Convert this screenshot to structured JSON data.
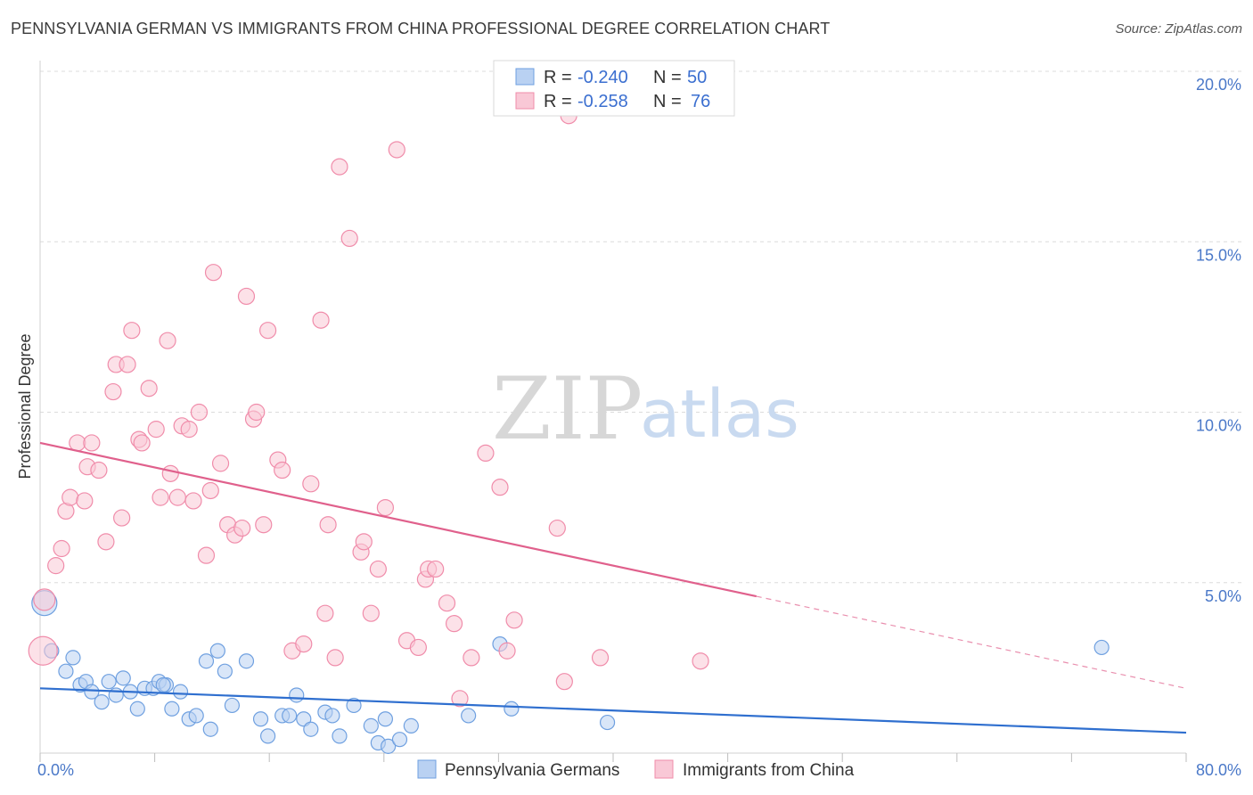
{
  "header": {
    "title": "PENNSYLVANIA GERMAN VS IMMIGRANTS FROM CHINA PROFESSIONAL DEGREE CORRELATION CHART",
    "source": "Source: ZipAtlas.com"
  },
  "watermark": {
    "zip": "ZIP",
    "atlas": "atlas"
  },
  "chart_data": {
    "type": "scatter",
    "title": "PENNSYLVANIA GERMAN VS IMMIGRANTS FROM CHINA PROFESSIONAL DEGREE CORRELATION CHART",
    "xlabel": "",
    "ylabel": "Professional Degree",
    "xlim": [
      0,
      80
    ],
    "ylim": [
      0,
      20
    ],
    "x_tick_labels": [
      "0.0%",
      "80.0%"
    ],
    "y_ticks": [
      {
        "value": 5,
        "label": "5.0%"
      },
      {
        "value": 10,
        "label": "10.0%"
      },
      {
        "value": 15,
        "label": "15.0%"
      },
      {
        "value": 20,
        "label": "20.0%"
      }
    ],
    "legend": [
      {
        "r_label": "R =",
        "r": "-0.240",
        "n_label": "N =",
        "n": "50",
        "color": "#6fa0e0"
      },
      {
        "r_label": "R =",
        "r": "-0.258",
        "n_label": "N =",
        "n": "76",
        "color": "#f08caa"
      }
    ],
    "series": [
      {
        "name": "Pennsylvania Germans",
        "color": "#6fa0e0",
        "fill": "#b9d1f2",
        "line_color": "#2f6fcf",
        "trend": {
          "x0": 0,
          "y0": 1.9,
          "x1": 80,
          "y1": 0.6,
          "solid_to": 80
        },
        "points": [
          [
            0.3,
            4.4,
            14
          ],
          [
            0.8,
            3.0,
            8
          ],
          [
            1.8,
            2.4,
            8
          ],
          [
            2.3,
            2.8,
            8
          ],
          [
            2.8,
            2.0,
            8
          ],
          [
            3.2,
            2.1,
            8
          ],
          [
            3.6,
            1.8,
            8
          ],
          [
            4.3,
            1.5,
            8
          ],
          [
            4.8,
            2.1,
            8
          ],
          [
            5.3,
            1.7,
            8
          ],
          [
            5.8,
            2.2,
            8
          ],
          [
            6.3,
            1.8,
            8
          ],
          [
            6.8,
            1.3,
            8
          ],
          [
            7.3,
            1.9,
            8
          ],
          [
            7.9,
            1.9,
            8
          ],
          [
            8.3,
            2.1,
            8
          ],
          [
            8.8,
            2.0,
            8
          ],
          [
            9.2,
            1.3,
            8
          ],
          [
            9.8,
            1.8,
            8
          ],
          [
            10.4,
            1.0,
            8
          ],
          [
            10.9,
            1.1,
            8
          ],
          [
            11.9,
            0.7,
            8
          ],
          [
            11.6,
            2.7,
            8
          ],
          [
            12.4,
            3.0,
            8
          ],
          [
            12.9,
            2.4,
            8
          ],
          [
            13.4,
            1.4,
            8
          ],
          [
            14.4,
            2.7,
            8
          ],
          [
            15.4,
            1.0,
            8
          ],
          [
            15.9,
            0.5,
            8
          ],
          [
            16.9,
            1.1,
            8
          ],
          [
            17.4,
            1.1,
            8
          ],
          [
            17.9,
            1.7,
            8
          ],
          [
            18.4,
            1.0,
            8
          ],
          [
            18.9,
            0.7,
            8
          ],
          [
            19.9,
            1.2,
            8
          ],
          [
            20.4,
            1.1,
            8
          ],
          [
            20.9,
            0.5,
            8
          ],
          [
            21.9,
            1.4,
            8
          ],
          [
            23.1,
            0.8,
            8
          ],
          [
            23.6,
            0.3,
            8
          ],
          [
            24.1,
            1.0,
            8
          ],
          [
            24.3,
            0.2,
            8
          ],
          [
            25.1,
            0.4,
            8
          ],
          [
            25.9,
            0.8,
            8
          ],
          [
            29.9,
            1.1,
            8
          ],
          [
            32.1,
            3.2,
            8
          ],
          [
            32.9,
            1.3,
            8
          ],
          [
            39.6,
            0.9,
            8
          ],
          [
            74.1,
            3.1,
            8
          ],
          [
            8.6,
            2.0,
            8
          ]
        ]
      },
      {
        "name": "Immigrants from China",
        "color": "#f08caa",
        "fill": "#f9c8d6",
        "line_color": "#e0608c",
        "trend": {
          "x0": 0,
          "y0": 9.1,
          "x1": 80,
          "y1": 1.9,
          "solid_to": 50
        },
        "points": [
          [
            0.2,
            3.0,
            16
          ],
          [
            0.3,
            4.5,
            12
          ],
          [
            1.1,
            5.5,
            9
          ],
          [
            1.5,
            6.0,
            9
          ],
          [
            1.8,
            7.1,
            9
          ],
          [
            2.1,
            7.5,
            9
          ],
          [
            2.6,
            9.1,
            9
          ],
          [
            3.1,
            7.4,
            9
          ],
          [
            3.3,
            8.4,
            9
          ],
          [
            3.6,
            9.1,
            9
          ],
          [
            4.1,
            8.3,
            9
          ],
          [
            4.6,
            6.2,
            9
          ],
          [
            5.1,
            10.6,
            9
          ],
          [
            5.3,
            11.4,
            9
          ],
          [
            5.7,
            6.9,
            9
          ],
          [
            6.1,
            11.4,
            9
          ],
          [
            6.4,
            12.4,
            9
          ],
          [
            6.9,
            9.2,
            9
          ],
          [
            7.1,
            9.1,
            9
          ],
          [
            7.6,
            10.7,
            9
          ],
          [
            8.1,
            9.5,
            9
          ],
          [
            8.4,
            7.5,
            9
          ],
          [
            8.9,
            12.1,
            9
          ],
          [
            9.1,
            8.2,
            9
          ],
          [
            9.6,
            7.5,
            9
          ],
          [
            9.9,
            9.6,
            9
          ],
          [
            10.4,
            9.5,
            9
          ],
          [
            10.7,
            7.4,
            9
          ],
          [
            11.1,
            10.0,
            9
          ],
          [
            11.9,
            7.7,
            9
          ],
          [
            11.6,
            5.8,
            9
          ],
          [
            12.1,
            14.1,
            9
          ],
          [
            12.6,
            8.5,
            9
          ],
          [
            13.1,
            6.7,
            9
          ],
          [
            13.6,
            6.4,
            9
          ],
          [
            14.1,
            6.6,
            9
          ],
          [
            14.4,
            13.4,
            9
          ],
          [
            14.9,
            9.8,
            9
          ],
          [
            15.1,
            10.0,
            9
          ],
          [
            15.6,
            6.7,
            9
          ],
          [
            15.9,
            12.4,
            9
          ],
          [
            16.6,
            8.6,
            9
          ],
          [
            16.9,
            8.3,
            9
          ],
          [
            17.6,
            3.0,
            9
          ],
          [
            18.4,
            3.2,
            9
          ],
          [
            18.9,
            7.9,
            9
          ],
          [
            19.6,
            12.7,
            9
          ],
          [
            19.9,
            4.1,
            9
          ],
          [
            20.1,
            6.7,
            9
          ],
          [
            20.6,
            2.8,
            9
          ],
          [
            20.9,
            17.2,
            9
          ],
          [
            21.6,
            15.1,
            9
          ],
          [
            22.4,
            5.9,
            9
          ],
          [
            22.6,
            6.2,
            9
          ],
          [
            23.1,
            4.1,
            9
          ],
          [
            23.6,
            5.4,
            9
          ],
          [
            24.1,
            7.2,
            9
          ],
          [
            24.9,
            17.7,
            9
          ],
          [
            25.6,
            3.3,
            9
          ],
          [
            26.4,
            3.1,
            9
          ],
          [
            26.9,
            5.1,
            9
          ],
          [
            27.1,
            5.4,
            9
          ],
          [
            27.6,
            5.4,
            9
          ],
          [
            28.4,
            4.4,
            9
          ],
          [
            28.9,
            3.8,
            9
          ],
          [
            29.3,
            1.6,
            9
          ],
          [
            30.1,
            2.8,
            9
          ],
          [
            31.1,
            8.8,
            9
          ],
          [
            32.1,
            7.8,
            9
          ],
          [
            32.6,
            3.0,
            9
          ],
          [
            33.1,
            3.9,
            9
          ],
          [
            36.1,
            6.6,
            9
          ],
          [
            36.6,
            2.1,
            9
          ],
          [
            36.9,
            18.7,
            9
          ],
          [
            39.1,
            2.8,
            9
          ],
          [
            46.1,
            2.7,
            9
          ]
        ]
      }
    ]
  }
}
